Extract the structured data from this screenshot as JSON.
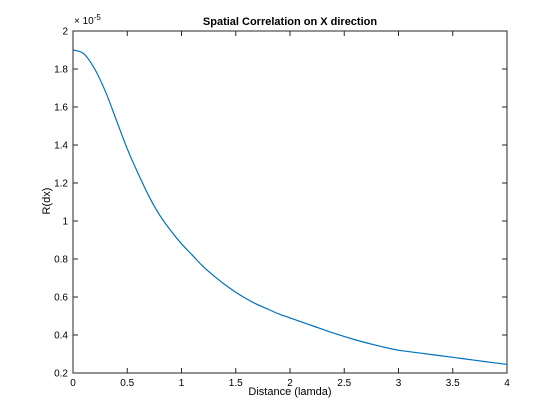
{
  "chart_data": {
    "type": "line",
    "title": "Spatial Correlation on X direction",
    "xlabel": "Distance (lamda)",
    "ylabel": "R(dx)",
    "xlim": [
      0,
      4
    ],
    "ylim": [
      0.2,
      2
    ],
    "y_multiplier_base": "× 10",
    "y_multiplier_exponent": "-5",
    "grid": false,
    "xticks": [
      0,
      0.5,
      1,
      1.5,
      2,
      2.5,
      3,
      3.5,
      4
    ],
    "xtick_labels": [
      "0",
      "0.5",
      "1",
      "1.5",
      "2",
      "2.5",
      "3",
      "3.5",
      "4"
    ],
    "yticks": [
      0.2,
      0.4,
      0.6,
      0.8,
      1.0,
      1.2,
      1.4,
      1.6,
      1.8,
      2.0
    ],
    "ytick_labels": [
      "0.2",
      "0.4",
      "0.6",
      "0.8",
      "1",
      "1.2",
      "1.4",
      "1.6",
      "1.8",
      "2"
    ],
    "series": [
      {
        "color": "#0072BD",
        "x": [
          0,
          0.1,
          0.2,
          0.3,
          0.4,
          0.5,
          0.6,
          0.7,
          0.8,
          0.9,
          1.0,
          1.1,
          1.2,
          1.3,
          1.4,
          1.5,
          1.6,
          1.7,
          1.8,
          1.9,
          2.0,
          2.2,
          2.4,
          2.6,
          2.8,
          3.0,
          3.2,
          3.4,
          3.6,
          3.8,
          4.0
        ],
        "y": [
          1.9,
          1.88,
          1.8,
          1.68,
          1.53,
          1.38,
          1.25,
          1.13,
          1.03,
          0.95,
          0.88,
          0.82,
          0.76,
          0.71,
          0.665,
          0.625,
          0.59,
          0.56,
          0.535,
          0.51,
          0.49,
          0.45,
          0.41,
          0.375,
          0.345,
          0.32,
          0.305,
          0.29,
          0.275,
          0.26,
          0.245
        ]
      }
    ]
  }
}
